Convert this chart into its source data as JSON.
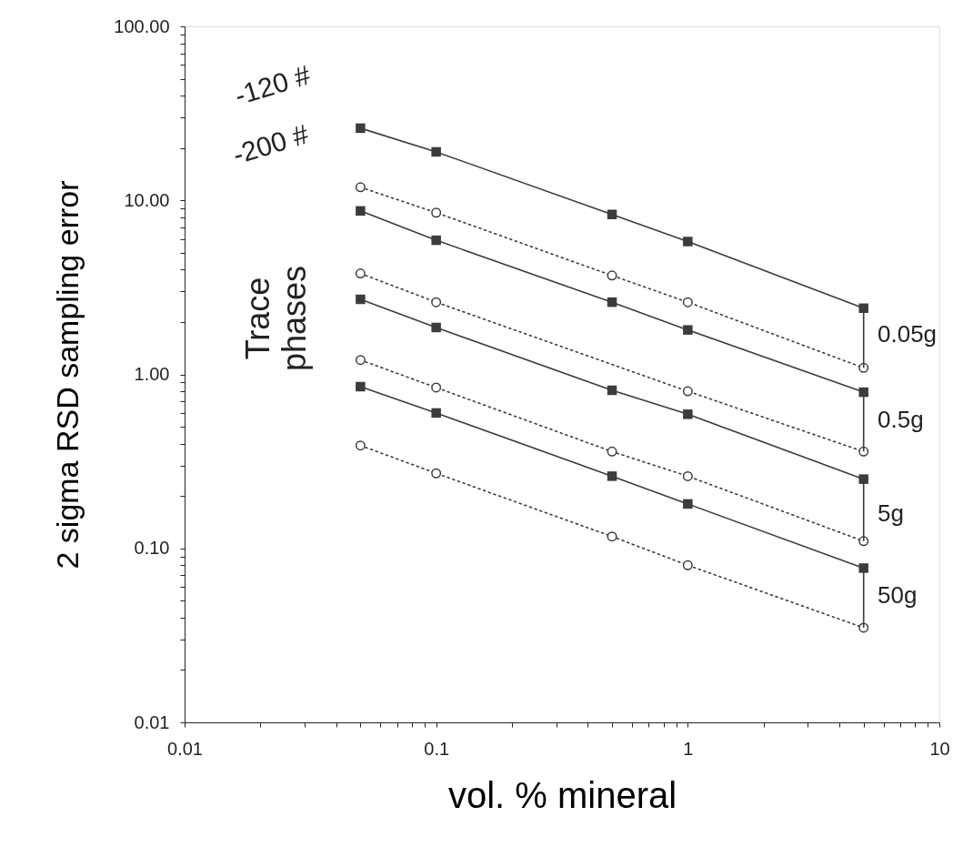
{
  "chart_data": {
    "type": "line",
    "xlabel": "vol. % mineral",
    "ylabel": "2 sigma RSD sampling error",
    "x": [
      0.05,
      0.1,
      0.5,
      1,
      5
    ],
    "log": "xy",
    "grid": false,
    "xlim": [
      0.01,
      10
    ],
    "ylim": [
      0.01,
      100
    ],
    "xticks": [
      {
        "value": 0.01,
        "label": "0.01"
      },
      {
        "value": 0.02,
        "label": null
      },
      {
        "value": 0.03,
        "label": null
      },
      {
        "value": 0.04,
        "label": null
      },
      {
        "value": 0.05,
        "label": null
      },
      {
        "value": 0.06,
        "label": null
      },
      {
        "value": 0.07,
        "label": null
      },
      {
        "value": 0.08,
        "label": null
      },
      {
        "value": 0.09,
        "label": null
      },
      {
        "value": 0.1,
        "label": "0.1"
      },
      {
        "value": 0.2,
        "label": null
      },
      {
        "value": 0.3,
        "label": null
      },
      {
        "value": 0.4,
        "label": null
      },
      {
        "value": 0.5,
        "label": null
      },
      {
        "value": 0.6,
        "label": null
      },
      {
        "value": 0.7,
        "label": null
      },
      {
        "value": 0.8,
        "label": null
      },
      {
        "value": 0.9,
        "label": null
      },
      {
        "value": 1,
        "label": "1"
      },
      {
        "value": 2,
        "label": null
      },
      {
        "value": 3,
        "label": null
      },
      {
        "value": 4,
        "label": null
      },
      {
        "value": 5,
        "label": null
      },
      {
        "value": 6,
        "label": null
      },
      {
        "value": 7,
        "label": null
      },
      {
        "value": 8,
        "label": null
      },
      {
        "value": 9,
        "label": null
      },
      {
        "value": 10,
        "label": "10"
      }
    ],
    "yticks": [
      {
        "value": 0.01,
        "label": "0.01"
      },
      {
        "value": 0.02,
        "label": null
      },
      {
        "value": 0.03,
        "label": null
      },
      {
        "value": 0.04,
        "label": null
      },
      {
        "value": 0.05,
        "label": null
      },
      {
        "value": 0.06,
        "label": null
      },
      {
        "value": 0.07,
        "label": null
      },
      {
        "value": 0.08,
        "label": null
      },
      {
        "value": 0.09,
        "label": null
      },
      {
        "value": 0.1,
        "label": "0.10"
      },
      {
        "value": 0.2,
        "label": null
      },
      {
        "value": 0.3,
        "label": null
      },
      {
        "value": 0.4,
        "label": null
      },
      {
        "value": 0.5,
        "label": null
      },
      {
        "value": 0.6,
        "label": null
      },
      {
        "value": 0.7,
        "label": null
      },
      {
        "value": 0.8,
        "label": null
      },
      {
        "value": 0.9,
        "label": null
      },
      {
        "value": 1,
        "label": "1.00"
      },
      {
        "value": 2,
        "label": null
      },
      {
        "value": 3,
        "label": null
      },
      {
        "value": 4,
        "label": null
      },
      {
        "value": 5,
        "label": null
      },
      {
        "value": 6,
        "label": null
      },
      {
        "value": 7,
        "label": null
      },
      {
        "value": 8,
        "label": null
      },
      {
        "value": 9,
        "label": null
      },
      {
        "value": 10,
        "label": "10.00"
      },
      {
        "value": 20,
        "label": null
      },
      {
        "value": 30,
        "label": null
      },
      {
        "value": 40,
        "label": null
      },
      {
        "value": 50,
        "label": null
      },
      {
        "value": 60,
        "label": null
      },
      {
        "value": 70,
        "label": null
      },
      {
        "value": 80,
        "label": null
      },
      {
        "value": 90,
        "label": null
      },
      {
        "value": 100,
        "label": "100.00"
      }
    ],
    "series": [
      {
        "color": "#3c3c3c",
        "marker": "square",
        "line_style": "solid",
        "values": [
          26,
          19,
          8.3,
          5.8,
          2.4
        ]
      },
      {
        "color": "#3c3c3c",
        "marker": "circle",
        "line_style": "dotted",
        "values": [
          11.9,
          8.5,
          3.7,
          2.6,
          1.09
        ]
      },
      {
        "color": "#3c3c3c",
        "marker": "square",
        "line_style": "solid",
        "values": [
          8.7,
          5.9,
          2.6,
          1.8,
          0.79
        ]
      },
      {
        "color": "#3c3c3c",
        "marker": "circle",
        "line_style": "dotted",
        "x": [
          0.05,
          0.1,
          1,
          5
        ],
        "values": [
          3.8,
          2.6,
          0.8,
          0.36
        ]
      },
      {
        "color": "#3c3c3c",
        "marker": "square",
        "line_style": "solid",
        "values": [
          2.7,
          1.86,
          0.81,
          0.59,
          0.25
        ]
      },
      {
        "color": "#3c3c3c",
        "marker": "circle",
        "line_style": "dotted",
        "values": [
          1.21,
          0.84,
          0.36,
          0.26,
          0.11
        ]
      },
      {
        "color": "#3c3c3c",
        "marker": "square",
        "line_style": "solid",
        "values": [
          0.85,
          0.6,
          0.26,
          0.18,
          0.077
        ]
      },
      {
        "color": "#3c3c3c",
        "marker": "circle",
        "line_style": "dotted",
        "values": [
          0.39,
          0.27,
          0.117,
          0.08,
          0.035
        ]
      }
    ],
    "annotations": [
      "-120 #",
      "-200 #",
      "Trace phases",
      "0.05g",
      "0.5g",
      "5g",
      "50g"
    ]
  }
}
